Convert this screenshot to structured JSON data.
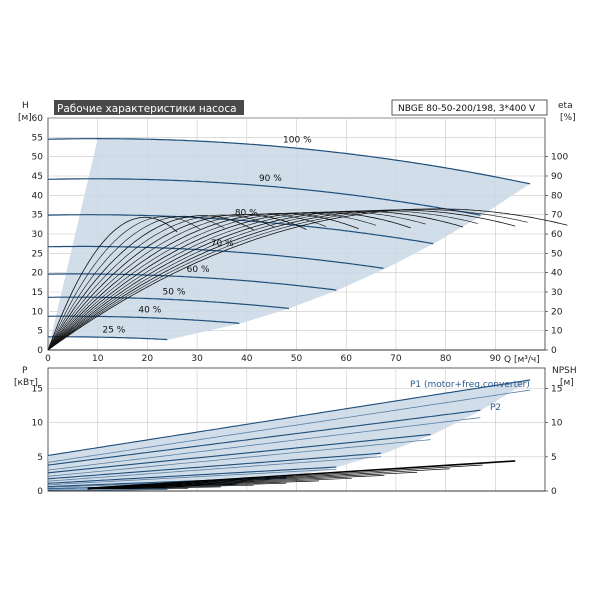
{
  "chart_data": [
    {
      "type": "line",
      "title": "Рабочие характеристики насоса",
      "model": "NBGE 80-50-200/198, 3*400 V",
      "y_label_top": "H",
      "y_label_unit": "[м]",
      "y2_label_top": "eta",
      "y2_label_unit": "[%]",
      "x_label": "Q [м³/ч]",
      "xlim": [
        0,
        100
      ],
      "ylim": [
        0,
        60
      ],
      "y2lim": [
        0,
        110
      ],
      "x_ticks": [
        "0",
        "10",
        "20",
        "30",
        "40",
        "50",
        "60",
        "70",
        "80",
        "90"
      ],
      "y_ticks": [
        "0",
        "5",
        "10",
        "15",
        "20",
        "25",
        "30",
        "35",
        "40",
        "45",
        "50",
        "55",
        "60"
      ],
      "y2_ticks": [
        "0",
        "10",
        "20",
        "30",
        "40",
        "50",
        "60",
        "70",
        "80",
        "90",
        "100"
      ],
      "grid": true,
      "speed_curves": [
        {
          "label": "100 %",
          "speed": 1.0,
          "qmax": 97
        },
        {
          "label": "90 %",
          "speed": 0.9,
          "qmax": 87.3
        },
        {
          "label": "80 %",
          "speed": 0.8,
          "qmax": 77.6
        },
        {
          "label": "70 %",
          "speed": 0.7,
          "qmax": 67.9
        },
        {
          "label": "60 %",
          "speed": 0.6,
          "qmax": 58.2
        },
        {
          "label": "50 %",
          "speed": 0.5,
          "qmax": 48.5
        },
        {
          "label": "40 %",
          "speed": 0.4,
          "qmax": 38.8
        },
        {
          "label": "25 %",
          "speed": 0.25,
          "qmax": 24.3
        }
      ],
      "head_at_full_speed": {
        "h0": 54.5,
        "a": 0.0315,
        "b": 0.00155
      },
      "eta_peak": 73,
      "eta_bep_q": 78
    },
    {
      "type": "line",
      "y_label_top": "P",
      "y_label_unit": "[кВт]",
      "y2_label_top": "NPSH",
      "y2_label_unit": "[м]",
      "xlim": [
        0,
        100
      ],
      "ylim": [
        0,
        18
      ],
      "y_ticks": [
        "0",
        "5",
        "10",
        "15"
      ],
      "y2_ticks": [
        "0",
        "5",
        "10",
        "15"
      ],
      "series_labels": [
        "P1 (motor+freq.converter)",
        "P2"
      ],
      "p1_full": {
        "p0": 5.2,
        "slope": 0.114
      },
      "p2_full": {
        "p0": 4.2,
        "slope": 0.109
      },
      "npsh": {
        "q_start": 8,
        "q_end": 94,
        "v_start": 0.4,
        "v_end": 4.4
      }
    }
  ],
  "colors": {
    "band": "#c9d8e6",
    "band_dark": "#b3c8db",
    "curve": "#1f4e7a",
    "eta": "#111111",
    "grid": "#c8c8c8",
    "title_bg": "#4a4a4a",
    "title_fg": "#ffffff",
    "label_blue": "#2c5a8c"
  }
}
